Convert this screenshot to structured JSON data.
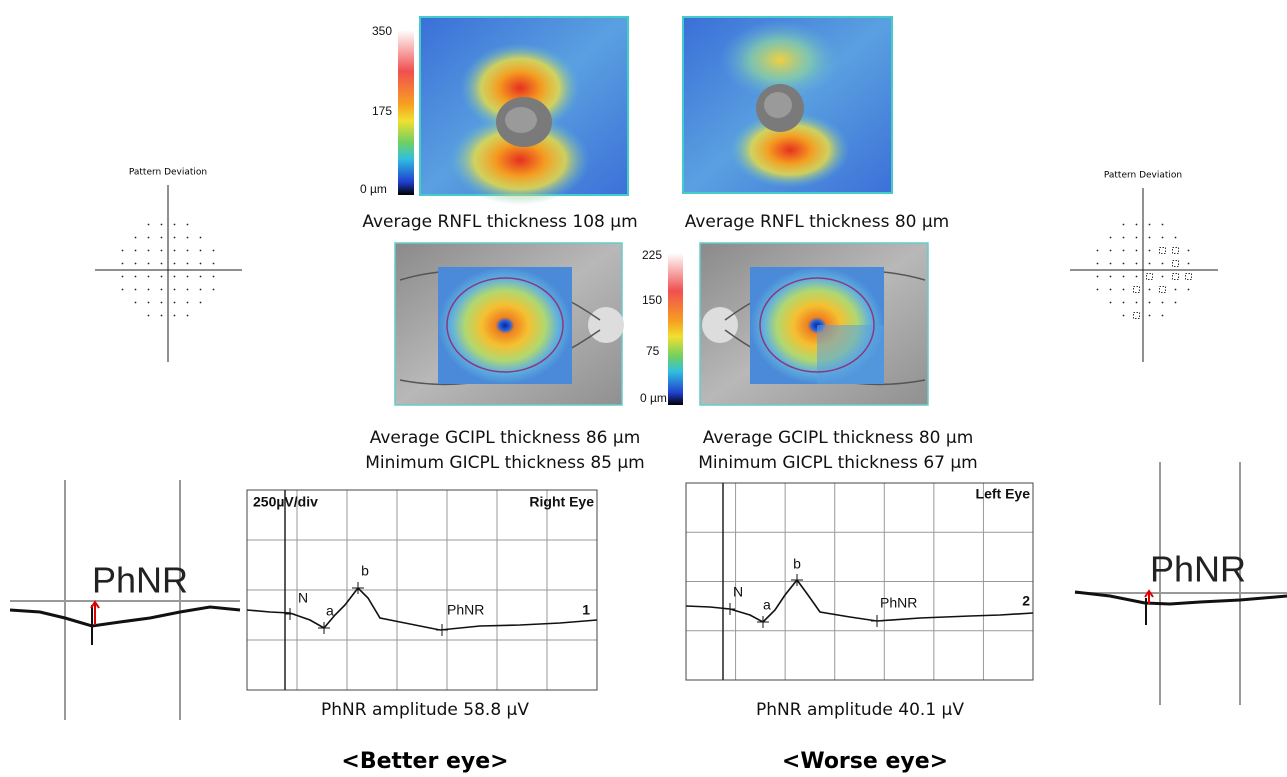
{
  "rnfl": {
    "scale": [
      "350",
      "175",
      "0 µm"
    ],
    "right": {
      "caption": "Average RNFL thickness 108 µm"
    },
    "left": {
      "caption": "Average RNFL thickness 80 µm"
    }
  },
  "gcipl": {
    "scale": [
      "225",
      "150",
      "75",
      "0 µm"
    ],
    "right": {
      "captions": [
        "Average GCIPL thickness 86 µm",
        "Minimum GICPL thickness 85 µm"
      ]
    },
    "left": {
      "captions": [
        "Average GCIPL thickness 80 µm",
        "Minimum GICPL thickness 67 µm"
      ]
    }
  },
  "visual_field": {
    "right": {
      "title": "Pattern Deviation"
    },
    "left": {
      "title": "Pattern Deviation"
    }
  },
  "erg": {
    "right": {
      "scale": "250µV/div",
      "eye": "Right Eye",
      "labels": [
        "N",
        "a",
        "b",
        "PhNR"
      ],
      "trace": "1",
      "caption": "PhNR amplitude 58.8 µV"
    },
    "left": {
      "eye": "Left Eye",
      "labels": [
        "N",
        "a",
        "b",
        "PhNR"
      ],
      "trace": "2",
      "caption": "PhNR amplitude 40.1 µV"
    }
  },
  "zoom": {
    "right": {
      "label": "PhNR"
    },
    "left": {
      "label": "PhNR"
    }
  },
  "footer": [
    "<Better eye>",
    "<Worse eye>"
  ]
}
